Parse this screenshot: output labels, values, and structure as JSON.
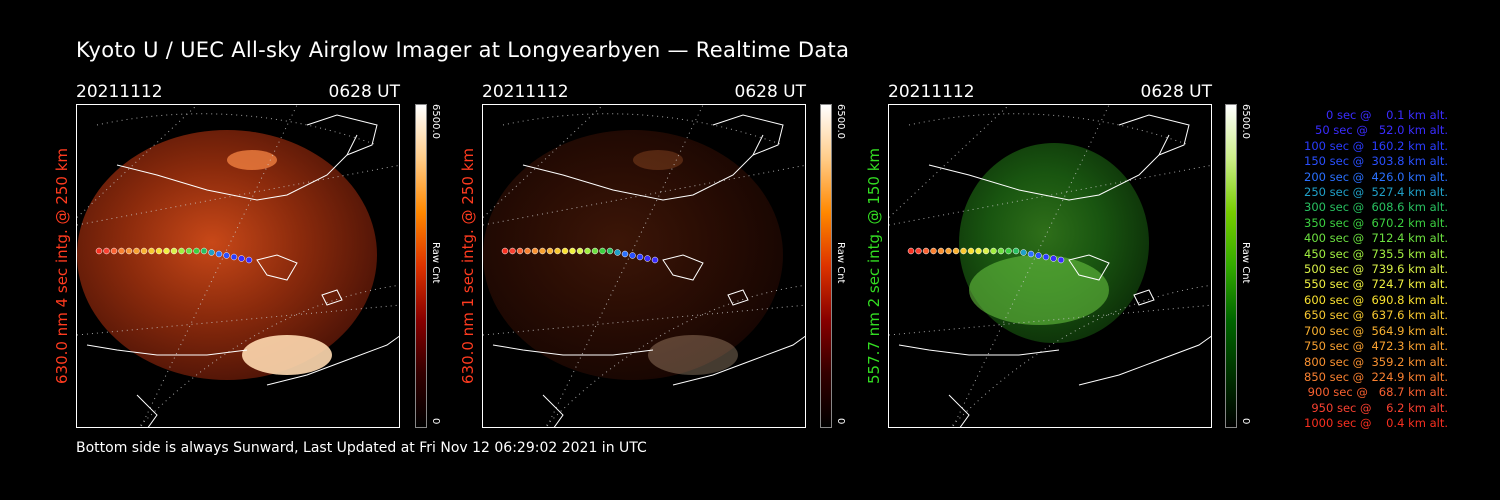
{
  "title": "Kyoto U / UEC All-sky Airglow Imager at Longyearbyen — Realtime Data",
  "panels": [
    {
      "date": "20211112",
      "time": "0628 UT",
      "ylabel": "630.0 nm 4 sec intg. @ 250 km",
      "ylabel_color": "#ff3b1f",
      "cbar_max": "6500.0",
      "cbar_min": "0",
      "cbar_unit": "Raw Cnt",
      "cmap": "red",
      "brightness": 1.0
    },
    {
      "date": "20211112",
      "time": "0628 UT",
      "ylabel": "630.0 nm 1 sec intg. @ 250 km",
      "ylabel_color": "#ff3b1f",
      "cbar_max": "6500.0",
      "cbar_min": "0",
      "cbar_unit": "Raw Cnt",
      "cmap": "red",
      "brightness": 0.3
    },
    {
      "date": "20211112",
      "time": "0628 UT",
      "ylabel": "557.7 nm 2 sec intg. @ 150 km",
      "ylabel_color": "#33dd22",
      "cbar_max": "6500.0",
      "cbar_min": "0",
      "cbar_unit": "Raw Cnt",
      "cmap": "green",
      "brightness": 0.8
    }
  ],
  "legend": [
    {
      "text": "   0 sec @    0.1 km alt.",
      "color": "#3a2cff"
    },
    {
      "text": "  50 sec @   52.0 km alt.",
      "color": "#3a2cff"
    },
    {
      "text": " 100 sec @  160.2 km alt.",
      "color": "#2a3cff"
    },
    {
      "text": " 150 sec @  303.8 km alt.",
      "color": "#2a50ff"
    },
    {
      "text": " 200 sec @  426.0 km alt.",
      "color": "#2a70ff"
    },
    {
      "text": " 250 sec @  527.4 km alt.",
      "color": "#20a0c8"
    },
    {
      "text": " 300 sec @  608.6 km alt.",
      "color": "#28c060"
    },
    {
      "text": " 350 sec @  670.2 km alt.",
      "color": "#3cd040"
    },
    {
      "text": " 400 sec @  712.4 km alt.",
      "color": "#6ce040"
    },
    {
      "text": " 450 sec @  735.5 km alt.",
      "color": "#a0ee40"
    },
    {
      "text": " 500 sec @  739.6 km alt.",
      "color": "#d8f048"
    },
    {
      "text": " 550 sec @  724.7 km alt.",
      "color": "#f0f040"
    },
    {
      "text": " 600 sec @  690.8 km alt.",
      "color": "#f8e030"
    },
    {
      "text": " 650 sec @  637.6 km alt.",
      "color": "#f8c830"
    },
    {
      "text": " 700 sec @  564.9 km alt.",
      "color": "#f8b030"
    },
    {
      "text": " 750 sec @  472.3 km alt.",
      "color": "#f8a030"
    },
    {
      "text": " 800 sec @  359.2 km alt.",
      "color": "#f89030"
    },
    {
      "text": " 850 sec @  224.9 km alt.",
      "color": "#f88030"
    },
    {
      "text": " 900 sec @   68.7 km alt.",
      "color": "#f86030"
    },
    {
      "text": " 950 sec @    6.2 km alt.",
      "color": "#f84030"
    },
    {
      "text": "1000 sec @    0.4 km alt.",
      "color": "#f83020"
    }
  ],
  "footer": "Bottom side is always Sunward, Last Updated at Fri Nov 12 06:29:02 2021 in UTC"
}
